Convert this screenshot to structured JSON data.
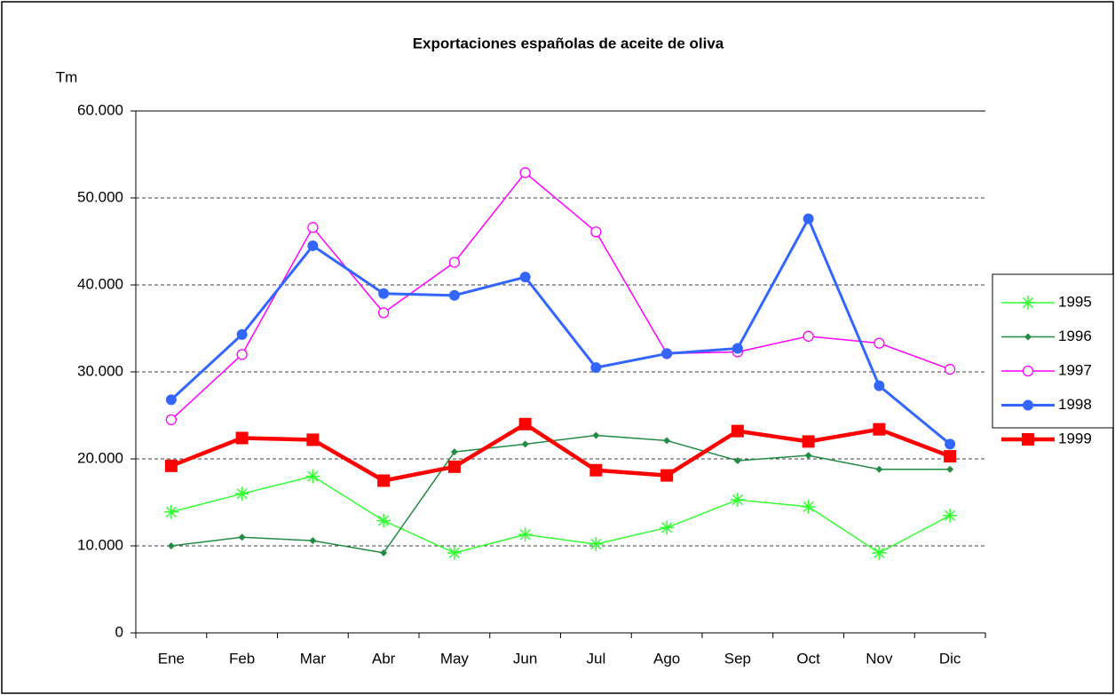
{
  "chart_data": {
    "type": "line",
    "title": "Exportaciones españolas de aceite de oliva",
    "y_label": "Tm",
    "categories": [
      "Ene",
      "Feb",
      "Mar",
      "Abr",
      "May",
      "Jun",
      "Jul",
      "Ago",
      "Sep",
      "Oct",
      "Nov",
      "Dic"
    ],
    "ylim": [
      0,
      60000
    ],
    "yticks": [
      0,
      {
        "value": 10000,
        "label": "10.000"
      },
      {
        "value": 20000,
        "label": "20.000"
      },
      {
        "value": 30000,
        "label": "30.000"
      },
      {
        "value": 40000,
        "label": "40.000"
      },
      {
        "value": 50000,
        "label": "50.000"
      },
      {
        "value": 60000,
        "label": "60.000"
      }
    ],
    "grid": true,
    "legend": "right",
    "series": [
      {
        "name": "1995",
        "color": "#33ff33",
        "marker": "star",
        "line_width": 1.5,
        "values": [
          13900,
          16000,
          18000,
          12900,
          9200,
          11300,
          10200,
          12100,
          15300,
          14500,
          9200,
          13500
        ]
      },
      {
        "name": "1996",
        "color": "#228b44",
        "marker": "diamond",
        "line_width": 1.5,
        "values": [
          10000,
          11000,
          10600,
          9200,
          20800,
          21700,
          22700,
          22100,
          19800,
          20400,
          18800,
          18800
        ]
      },
      {
        "name": "1997",
        "color": "#ff00ff",
        "marker": "open-circle",
        "line_width": 1.5,
        "values": [
          24500,
          32000,
          46600,
          36800,
          42600,
          52900,
          46100,
          32100,
          32300,
          34100,
          33300,
          30300
        ]
      },
      {
        "name": "1998",
        "color": "#3366ff",
        "marker": "circle",
        "line_width": 3,
        "values": [
          26800,
          34300,
          44500,
          39000,
          38800,
          40900,
          30500,
          32100,
          32700,
          47600,
          28400,
          21700
        ]
      },
      {
        "name": "1999",
        "color": "#ff0000",
        "marker": "square",
        "line_width": 4.5,
        "values": [
          19200,
          22400,
          22200,
          17500,
          19100,
          24000,
          18700,
          18100,
          23200,
          22000,
          23400,
          20300
        ]
      }
    ]
  }
}
